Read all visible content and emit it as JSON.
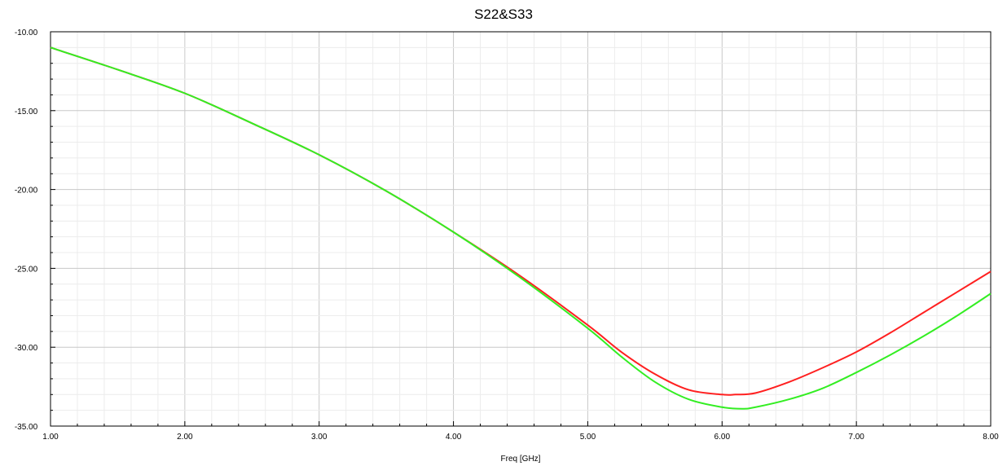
{
  "chart_data": {
    "type": "line",
    "title": "S22&S33",
    "xlabel": "Freq [GHz]",
    "ylabel": "",
    "xlim": [
      1.0,
      8.0
    ],
    "ylim": [
      -35.0,
      -10.0
    ],
    "x_ticks": [
      "1.00",
      "2.00",
      "3.00",
      "4.00",
      "5.00",
      "6.00",
      "7.00",
      "8.00"
    ],
    "y_ticks": [
      "-10.00",
      "-15.00",
      "-20.00",
      "-25.00",
      "-30.00",
      "-35.00"
    ],
    "grid": true,
    "series": [
      {
        "color": "#ff2020",
        "x": [
          1.0,
          1.5,
          2.0,
          2.5,
          3.0,
          3.5,
          4.0,
          4.5,
          5.0,
          5.25,
          5.5,
          5.75,
          6.0,
          6.1,
          6.25,
          6.5,
          6.75,
          7.0,
          7.25,
          7.5,
          7.75,
          8.0
        ],
        "y": [
          -11.0,
          -12.4,
          -13.9,
          -15.8,
          -17.8,
          -20.1,
          -22.7,
          -25.5,
          -28.6,
          -30.3,
          -31.7,
          -32.7,
          -33.0,
          -33.0,
          -32.9,
          -32.2,
          -31.3,
          -30.3,
          -29.1,
          -27.8,
          -26.5,
          -25.2
        ]
      },
      {
        "color": "#33ee22",
        "x": [
          1.0,
          1.5,
          2.0,
          2.5,
          3.0,
          3.5,
          4.0,
          4.5,
          5.0,
          5.25,
          5.5,
          5.75,
          6.0,
          6.15,
          6.25,
          6.5,
          6.75,
          7.0,
          7.25,
          7.5,
          7.75,
          8.0
        ],
        "y": [
          -11.0,
          -12.4,
          -13.9,
          -15.8,
          -17.8,
          -20.1,
          -22.7,
          -25.6,
          -28.8,
          -30.6,
          -32.2,
          -33.3,
          -33.8,
          -33.9,
          -33.8,
          -33.3,
          -32.6,
          -31.6,
          -30.5,
          -29.3,
          -28.0,
          -26.6
        ]
      }
    ]
  }
}
